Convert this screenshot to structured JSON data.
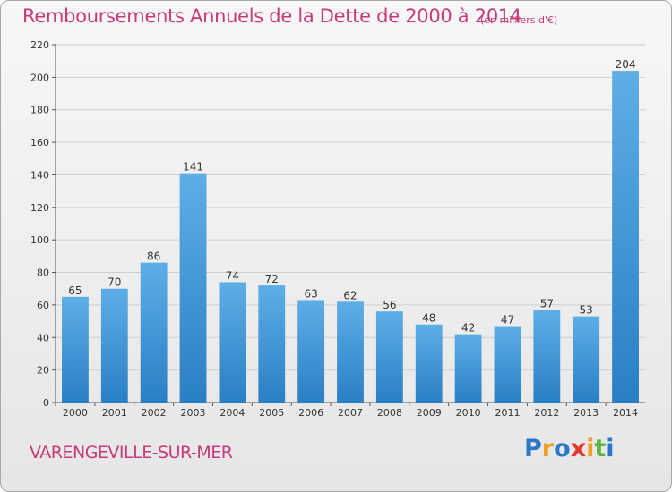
{
  "title": "Remboursements Annuels de la Dette de 2000 à 2014",
  "unit_note": "(en milliers d'€)",
  "commune": "VARENGEVILLE-SUR-MER",
  "logo": {
    "letters": [
      "P",
      "r",
      "o",
      "x",
      "i",
      "t",
      "i"
    ],
    "colors": [
      "#2b78c9",
      "#f0a020",
      "#2b78c9",
      "#e03a2c",
      "#f0a020",
      "#5bb53b",
      "#2b78c9"
    ]
  },
  "colors": {
    "title": "#c8387a",
    "bar_light": "#5eaee6",
    "bar_dark": "#2a7fc4"
  },
  "chart_data": {
    "type": "bar",
    "title": "Remboursements Annuels de la Dette de 2000 à 2014",
    "categories": [
      "2000",
      "2001",
      "2002",
      "2003",
      "2004",
      "2005",
      "2006",
      "2007",
      "2008",
      "2009",
      "2010",
      "2011",
      "2012",
      "2013",
      "2014"
    ],
    "values": [
      65,
      70,
      86,
      141,
      74,
      72,
      63,
      62,
      56,
      48,
      42,
      47,
      57,
      53,
      204
    ],
    "ylim": [
      0,
      220
    ],
    "yticks": [
      0,
      20,
      40,
      60,
      80,
      100,
      120,
      140,
      160,
      180,
      200,
      220
    ],
    "grid": true
  }
}
